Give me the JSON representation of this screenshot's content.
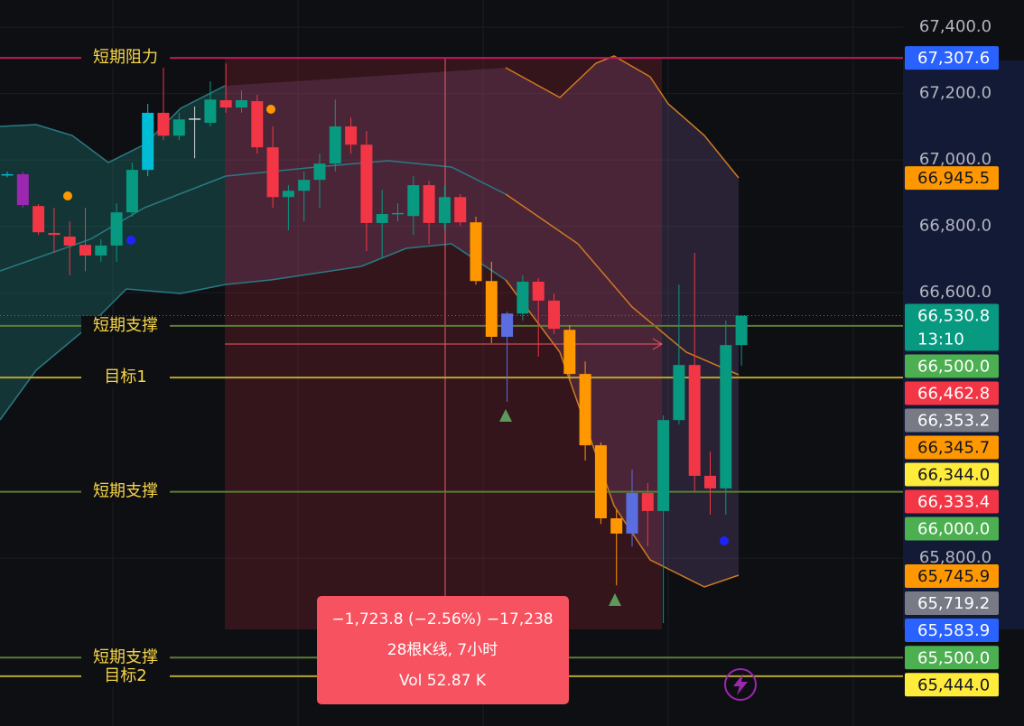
{
  "chart_data": {
    "type": "candlestick",
    "ylim": [
      65294,
      67482
    ],
    "yticks": [
      {
        "value": 67400,
        "label": "67,400.0"
      },
      {
        "value": 67200,
        "label": "67,200.0"
      },
      {
        "value": 67000,
        "label": "67,000.0"
      },
      {
        "value": 66800,
        "label": "66,800.0"
      },
      {
        "value": 66600,
        "label": "66,600.0"
      },
      {
        "value": 65800,
        "label": "65,800.0"
      }
    ],
    "grid": true,
    "open": [
      66957,
      66957,
      66861,
      66780,
      66769,
      66744,
      66712,
      66742,
      66842,
      66970,
      67142,
      67073,
      67122,
      67112,
      67180,
      67158,
      67177,
      67038,
      66888,
      66907,
      66940,
      66989,
      67101,
      67046,
      66810,
      66837,
      66831,
      66924,
      66810,
      66888,
      66812,
      66635,
      66467,
      66537,
      66633,
      66576,
      66488,
      66355,
      66140,
      65920,
      65874,
      65996,
      65942,
      66216,
      66382,
      66048,
      66010,
      66442
    ],
    "high": [
      66965,
      66965,
      66867,
      66856,
      66815,
      66856,
      66761,
      66869,
      66992,
      67169,
      67278,
      67142,
      67161,
      67237,
      67291,
      67210,
      67196,
      67101,
      66924,
      66965,
      67019,
      67182,
      67128,
      67087,
      66910,
      66869,
      66951,
      66937,
      66924,
      66897,
      66829,
      66693,
      66543,
      66652,
      66644,
      66597,
      66502,
      66393,
      66148,
      65944,
      66067,
      66026,
      66230,
      66624,
      66720,
      66121,
      66516,
      66530.8
    ],
    "low": [
      66948,
      66856,
      66774,
      66720,
      66652,
      66665,
      66693,
      66693,
      66829,
      66951,
      67060,
      67060,
      67005,
      67101,
      67142,
      67142,
      67019,
      66856,
      66788,
      66815,
      66856,
      66965,
      67019,
      66725,
      66706,
      66815,
      66774,
      66747,
      66788,
      66801,
      66624,
      66448,
      66271,
      66516,
      66407,
      66475,
      66339,
      66094,
      65903,
      65718,
      65835,
      65835,
      65604,
      66203,
      65999,
      65931,
      65931,
      66380
    ],
    "close": [
      66955,
      66864,
      66782,
      66774,
      66742,
      66712,
      66742,
      66842,
      66970,
      67142,
      67073,
      67122,
      67125,
      67182,
      67158,
      67180,
      67038,
      66888,
      66907,
      66940,
      66989,
      67101,
      67046,
      66810,
      66837,
      66840,
      66924,
      66810,
      66888,
      66812,
      66635,
      66467,
      66537,
      66633,
      66576,
      66491,
      66355,
      66140,
      65920,
      65874,
      65996,
      65942,
      66216,
      66382,
      66048,
      66010,
      66442,
      66530.8
    ],
    "colors": [
      "#00bcd4",
      "#9c27b0",
      "#f23645",
      "#f23645",
      "#f23645",
      "#f23645",
      "#089981",
      "#089981",
      "#089981",
      "#00bcd4",
      "#f23645",
      "#089981",
      "#d1d4dc",
      "#089981",
      "#f23645",
      "#089981",
      "#f23645",
      "#f23645",
      "#089981",
      "#089981",
      "#089981",
      "#089981",
      "#f23645",
      "#f23645",
      "#089981",
      "#089981",
      "#089981",
      "#f23645",
      "#089981",
      "#f23645",
      "#ff9800",
      "#ff9800",
      "#5b6ee1",
      "#089981",
      "#f23645",
      "#f23645",
      "#ff9800",
      "#ff9800",
      "#ff9800",
      "#ff9800",
      "#5b6ee1",
      "#f23645",
      "#089981",
      "#089981",
      "#f23645",
      "#f23645",
      "#089981",
      "#089981"
    ],
    "levels": [
      {
        "label": "短期阻力",
        "value": 67307.6,
        "color": "#c2185b"
      },
      {
        "label": "短期支撑",
        "value": 66500,
        "color": "#5b7f34"
      },
      {
        "label": "目标1",
        "value": 66344,
        "color": "#b8a532"
      },
      {
        "label": "短期支撑",
        "value": 66000,
        "color": "#5b7f34"
      },
      {
        "label": "短期支撑",
        "value": 65500,
        "color": "#5b7f34"
      },
      {
        "label": "目标2",
        "value": 65444,
        "color": "#b8a532"
      }
    ],
    "price_labels": [
      {
        "value": 67307.6,
        "label": "67,307.6",
        "color": "#2962ff",
        "text_color": "#ffffff"
      },
      {
        "value": 66945.5,
        "label": "66,945.5",
        "color": "#ff9800",
        "text_color": "#131722"
      },
      {
        "value": 66530.8,
        "label": "66,530.8",
        "color": "#089981",
        "text_color": "#ffffff",
        "countdown": "13:10"
      },
      {
        "value": 66500,
        "label": "66,500.0",
        "color": "#4caf50",
        "text_color": "#ffffff"
      },
      {
        "value": 66462.8,
        "label": "66,462.8",
        "color": "#f23645",
        "text_color": "#ffffff"
      },
      {
        "value": 66353.2,
        "label": "66,353.2",
        "color": "#787b86",
        "text_color": "#ffffff"
      },
      {
        "value": 66345.7,
        "label": "66,345.7",
        "color": "#ff9800",
        "text_color": "#131722"
      },
      {
        "value": 66344,
        "label": "66,344.0",
        "color": "#ffeb3b",
        "text_color": "#131722"
      },
      {
        "value": 66333.4,
        "label": "66,333.4",
        "color": "#f23645",
        "text_color": "#ffffff"
      },
      {
        "value": 66000,
        "label": "66,000.0",
        "color": "#4caf50",
        "text_color": "#ffffff"
      },
      {
        "value": 65745.9,
        "label": "65,745.9",
        "color": "#ff9800",
        "text_color": "#131722"
      },
      {
        "value": 65719.2,
        "label": "65,719.2",
        "color": "#787b86",
        "text_color": "#ffffff"
      },
      {
        "value": 65583.9,
        "label": "65,583.9",
        "color": "#2962ff",
        "text_color": "#ffffff"
      },
      {
        "value": 65500,
        "label": "65,500.0",
        "color": "#4caf50",
        "text_color": "#ffffff"
      },
      {
        "value": 65444,
        "label": "65,444.0",
        "color": "#ffeb3b",
        "text_color": "#131722"
      }
    ],
    "annotations": [
      "−1,723.8 (−2.56%) −17,238",
      "28根K线, 7小时",
      "Vol 52.87 K"
    ]
  }
}
